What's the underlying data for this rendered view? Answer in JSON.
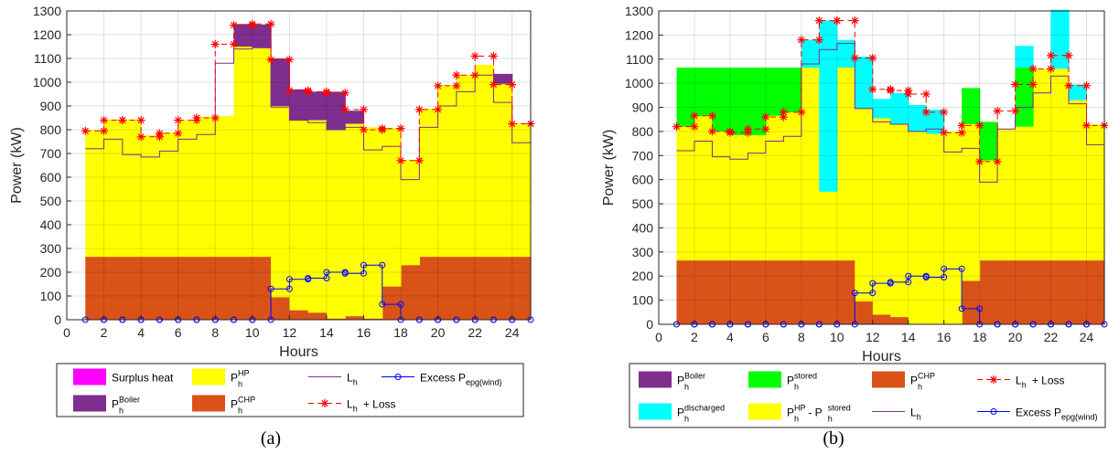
{
  "labels": {
    "a": "(a)",
    "b": "(b)"
  },
  "chart_data": [
    {
      "type": "area",
      "panel": "a",
      "xlabel": "Hours",
      "ylabel": "Power (kW)",
      "xlim": [
        0,
        25
      ],
      "ylim": [
        0,
        1300
      ],
      "xticks": [
        0,
        2,
        4,
        6,
        8,
        10,
        12,
        14,
        16,
        18,
        20,
        22,
        24
      ],
      "yticks": [
        0,
        100,
        200,
        300,
        400,
        500,
        600,
        700,
        800,
        900,
        1000,
        1100,
        1200,
        1300
      ],
      "grid": true,
      "hours": [
        1,
        2,
        3,
        4,
        5,
        6,
        7,
        8,
        9,
        10,
        11,
        12,
        13,
        14,
        15,
        16,
        17,
        18,
        19,
        20,
        21,
        22,
        23,
        24
      ],
      "stacked_series": [
        {
          "key": "chp",
          "color": "#D95319",
          "values": [
            265,
            265,
            265,
            265,
            265,
            265,
            265,
            265,
            265,
            265,
            95,
            40,
            30,
            5,
            15,
            5,
            140,
            230,
            265,
            265,
            265,
            265,
            265,
            265
          ]
        },
        {
          "key": "hp",
          "color": "#FFFF00",
          "values": [
            533,
            578,
            578,
            512,
            523,
            575,
            590,
            592,
            885,
            878,
            805,
            800,
            810,
            795,
            810,
            805,
            668,
            442,
            623,
            723,
            765,
            808,
            728,
            562
          ]
        },
        {
          "key": "boiler",
          "color": "#7E2F8E",
          "values": [
            0,
            0,
            0,
            0,
            0,
            0,
            0,
            0,
            95,
            100,
            200,
            130,
            120,
            160,
            55,
            0,
            0,
            0,
            0,
            0,
            0,
            0,
            42,
            0
          ]
        }
      ],
      "lines": [
        {
          "key": "lh",
          "color": "#7E2F8E",
          "values": [
            720,
            760,
            695,
            685,
            710,
            760,
            780,
            1080,
            1140,
            1165,
            895,
            840,
            830,
            800,
            810,
            715,
            730,
            590,
            810,
            900,
            960,
            1030,
            915,
            745
          ]
        },
        {
          "key": "lh_loss",
          "color": "#FF0000",
          "marker": "*",
          "values": [
            795,
            840,
            840,
            770,
            785,
            840,
            850,
            1160,
            1240,
            1245,
            1095,
            965,
            960,
            955,
            885,
            800,
            805,
            670,
            885,
            985,
            1030,
            1110,
            990,
            825
          ]
        },
        {
          "key": "excess",
          "color": "#0000FF",
          "marker": "o",
          "values": [
            0,
            0,
            0,
            0,
            0,
            0,
            0,
            0,
            0,
            0,
            130,
            170,
            175,
            200,
            195,
            230,
            65,
            0,
            0,
            0,
            0,
            0,
            0,
            0
          ]
        }
      ],
      "legend": {
        "position": "bottom",
        "entries": [
          {
            "key": "surplus",
            "type": "patch",
            "color": "#FF00FF",
            "label": "Surplus heat"
          },
          {
            "key": "hp",
            "type": "patch",
            "color": "#FFFF00",
            "label": "P",
            "sup": "HP",
            "sub": "h"
          },
          {
            "key": "lh",
            "type": "line",
            "color": "#7E2F8E",
            "label": "L",
            "sub": "h"
          },
          {
            "key": "excess",
            "type": "marker-o",
            "color": "#0000FF",
            "label": "Excess P",
            "sub": "epg(wind)"
          },
          {
            "key": "boiler",
            "type": "patch",
            "color": "#7E2F8E",
            "label": "P",
            "sup": "Boiler",
            "sub": "h"
          },
          {
            "key": "chp",
            "type": "patch",
            "color": "#D95319",
            "label": "P",
            "sup": "CHP",
            "sub": "h"
          },
          {
            "key": "lh_loss",
            "type": "marker-star",
            "color": "#FF0000",
            "label": "L",
            "sub": "h",
            "suffix": " + Loss"
          }
        ]
      }
    },
    {
      "type": "area",
      "panel": "b",
      "xlabel": "Hours",
      "ylabel": "Power (kW)",
      "xlim": [
        0,
        25
      ],
      "ylim": [
        0,
        1300
      ],
      "xticks": [
        0,
        2,
        4,
        6,
        8,
        10,
        12,
        14,
        16,
        18,
        20,
        22,
        24
      ],
      "yticks": [
        0,
        100,
        200,
        300,
        400,
        500,
        600,
        700,
        800,
        900,
        1000,
        1100,
        1200,
        1300
      ],
      "grid": true,
      "hours": [
        1,
        2,
        3,
        4,
        5,
        6,
        7,
        8,
        9,
        10,
        11,
        12,
        13,
        14,
        15,
        16,
        17,
        18,
        19,
        20,
        21,
        22,
        23,
        24
      ],
      "stacked_series": [
        {
          "key": "chp",
          "color": "#D95319",
          "values": [
            265,
            265,
            265,
            265,
            265,
            265,
            265,
            265,
            265,
            265,
            95,
            40,
            30,
            0,
            0,
            0,
            180,
            265,
            265,
            265,
            265,
            265,
            265,
            265
          ]
        },
        {
          "key": "hp_minus_stored",
          "color": "#FFFF00",
          "values": [
            555,
            600,
            535,
            520,
            520,
            600,
            615,
            800,
            285,
            800,
            800,
            815,
            800,
            800,
            790,
            800,
            650,
            415,
            545,
            555,
            795,
            795,
            665,
            565
          ]
        },
        {
          "key": "stored",
          "color": "#00FF00",
          "values": [
            245,
            200,
            265,
            280,
            280,
            200,
            185,
            0,
            0,
            0,
            0,
            0,
            0,
            0,
            0,
            0,
            150,
            160,
            0,
            245,
            0,
            0,
            0,
            0
          ]
        },
        {
          "key": "discharged",
          "color": "#00FFFF",
          "values": [
            0,
            0,
            0,
            0,
            0,
            0,
            0,
            115,
            710,
            115,
            215,
            80,
            130,
            110,
            100,
            0,
            0,
            0,
            0,
            90,
            0,
            245,
            65,
            0
          ]
        },
        {
          "key": "boiler",
          "color": "#7E2F8E",
          "values": [
            0,
            0,
            0,
            0,
            0,
            0,
            0,
            0,
            0,
            0,
            0,
            0,
            0,
            0,
            0,
            0,
            0,
            0,
            0,
            0,
            0,
            0,
            0,
            0
          ]
        }
      ],
      "lines": [
        {
          "key": "lh",
          "color": "#7E2F8E",
          "values": [
            720,
            760,
            695,
            685,
            710,
            760,
            780,
            1080,
            1140,
            1165,
            895,
            840,
            830,
            800,
            810,
            715,
            730,
            590,
            810,
            900,
            960,
            1030,
            915,
            745
          ]
        },
        {
          "key": "lh_loss",
          "color": "#FF0000",
          "marker": "*",
          "values": [
            820,
            865,
            800,
            795,
            810,
            860,
            880,
            1180,
            1260,
            1260,
            1105,
            975,
            970,
            955,
            880,
            795,
            825,
            675,
            885,
            995,
            1060,
            1115,
            990,
            825
          ]
        },
        {
          "key": "excess",
          "color": "#0000FF",
          "marker": "o",
          "values": [
            0,
            0,
            0,
            0,
            0,
            0,
            0,
            0,
            0,
            0,
            130,
            170,
            175,
            200,
            195,
            230,
            65,
            0,
            0,
            0,
            0,
            0,
            0,
            0
          ]
        }
      ],
      "legend": {
        "position": "bottom",
        "entries": [
          {
            "key": "boiler",
            "type": "patch",
            "color": "#7E2F8E",
            "label": "P",
            "sup": "Boiler",
            "sub": "h"
          },
          {
            "key": "stored",
            "type": "patch",
            "color": "#00FF00",
            "label": "P",
            "sup": "stored",
            "sub": "h"
          },
          {
            "key": "chp",
            "type": "patch",
            "color": "#D95319",
            "label": "P",
            "sup": "CHP",
            "sub": "h"
          },
          {
            "key": "lh_loss",
            "type": "marker-star",
            "color": "#FF0000",
            "label": "L",
            "sub": "h",
            "suffix": " + Loss"
          },
          {
            "key": "discharged",
            "type": "patch",
            "color": "#00FFFF",
            "label": "P",
            "sup": "discharged",
            "sub": "h"
          },
          {
            "key": "hp_minus_stored",
            "type": "patch",
            "color": "#FFFF00",
            "label": "P",
            "sup": "HP",
            "sub": "h",
            "suffix": " - P",
            "sup2": "stored",
            "sub2": "h"
          },
          {
            "key": "lh",
            "type": "line",
            "color": "#7E2F8E",
            "label": "L",
            "sub": "h"
          },
          {
            "key": "excess",
            "type": "marker-o",
            "color": "#0000FF",
            "label": "Excess P",
            "sub": "epg(wind)"
          }
        ]
      }
    }
  ]
}
